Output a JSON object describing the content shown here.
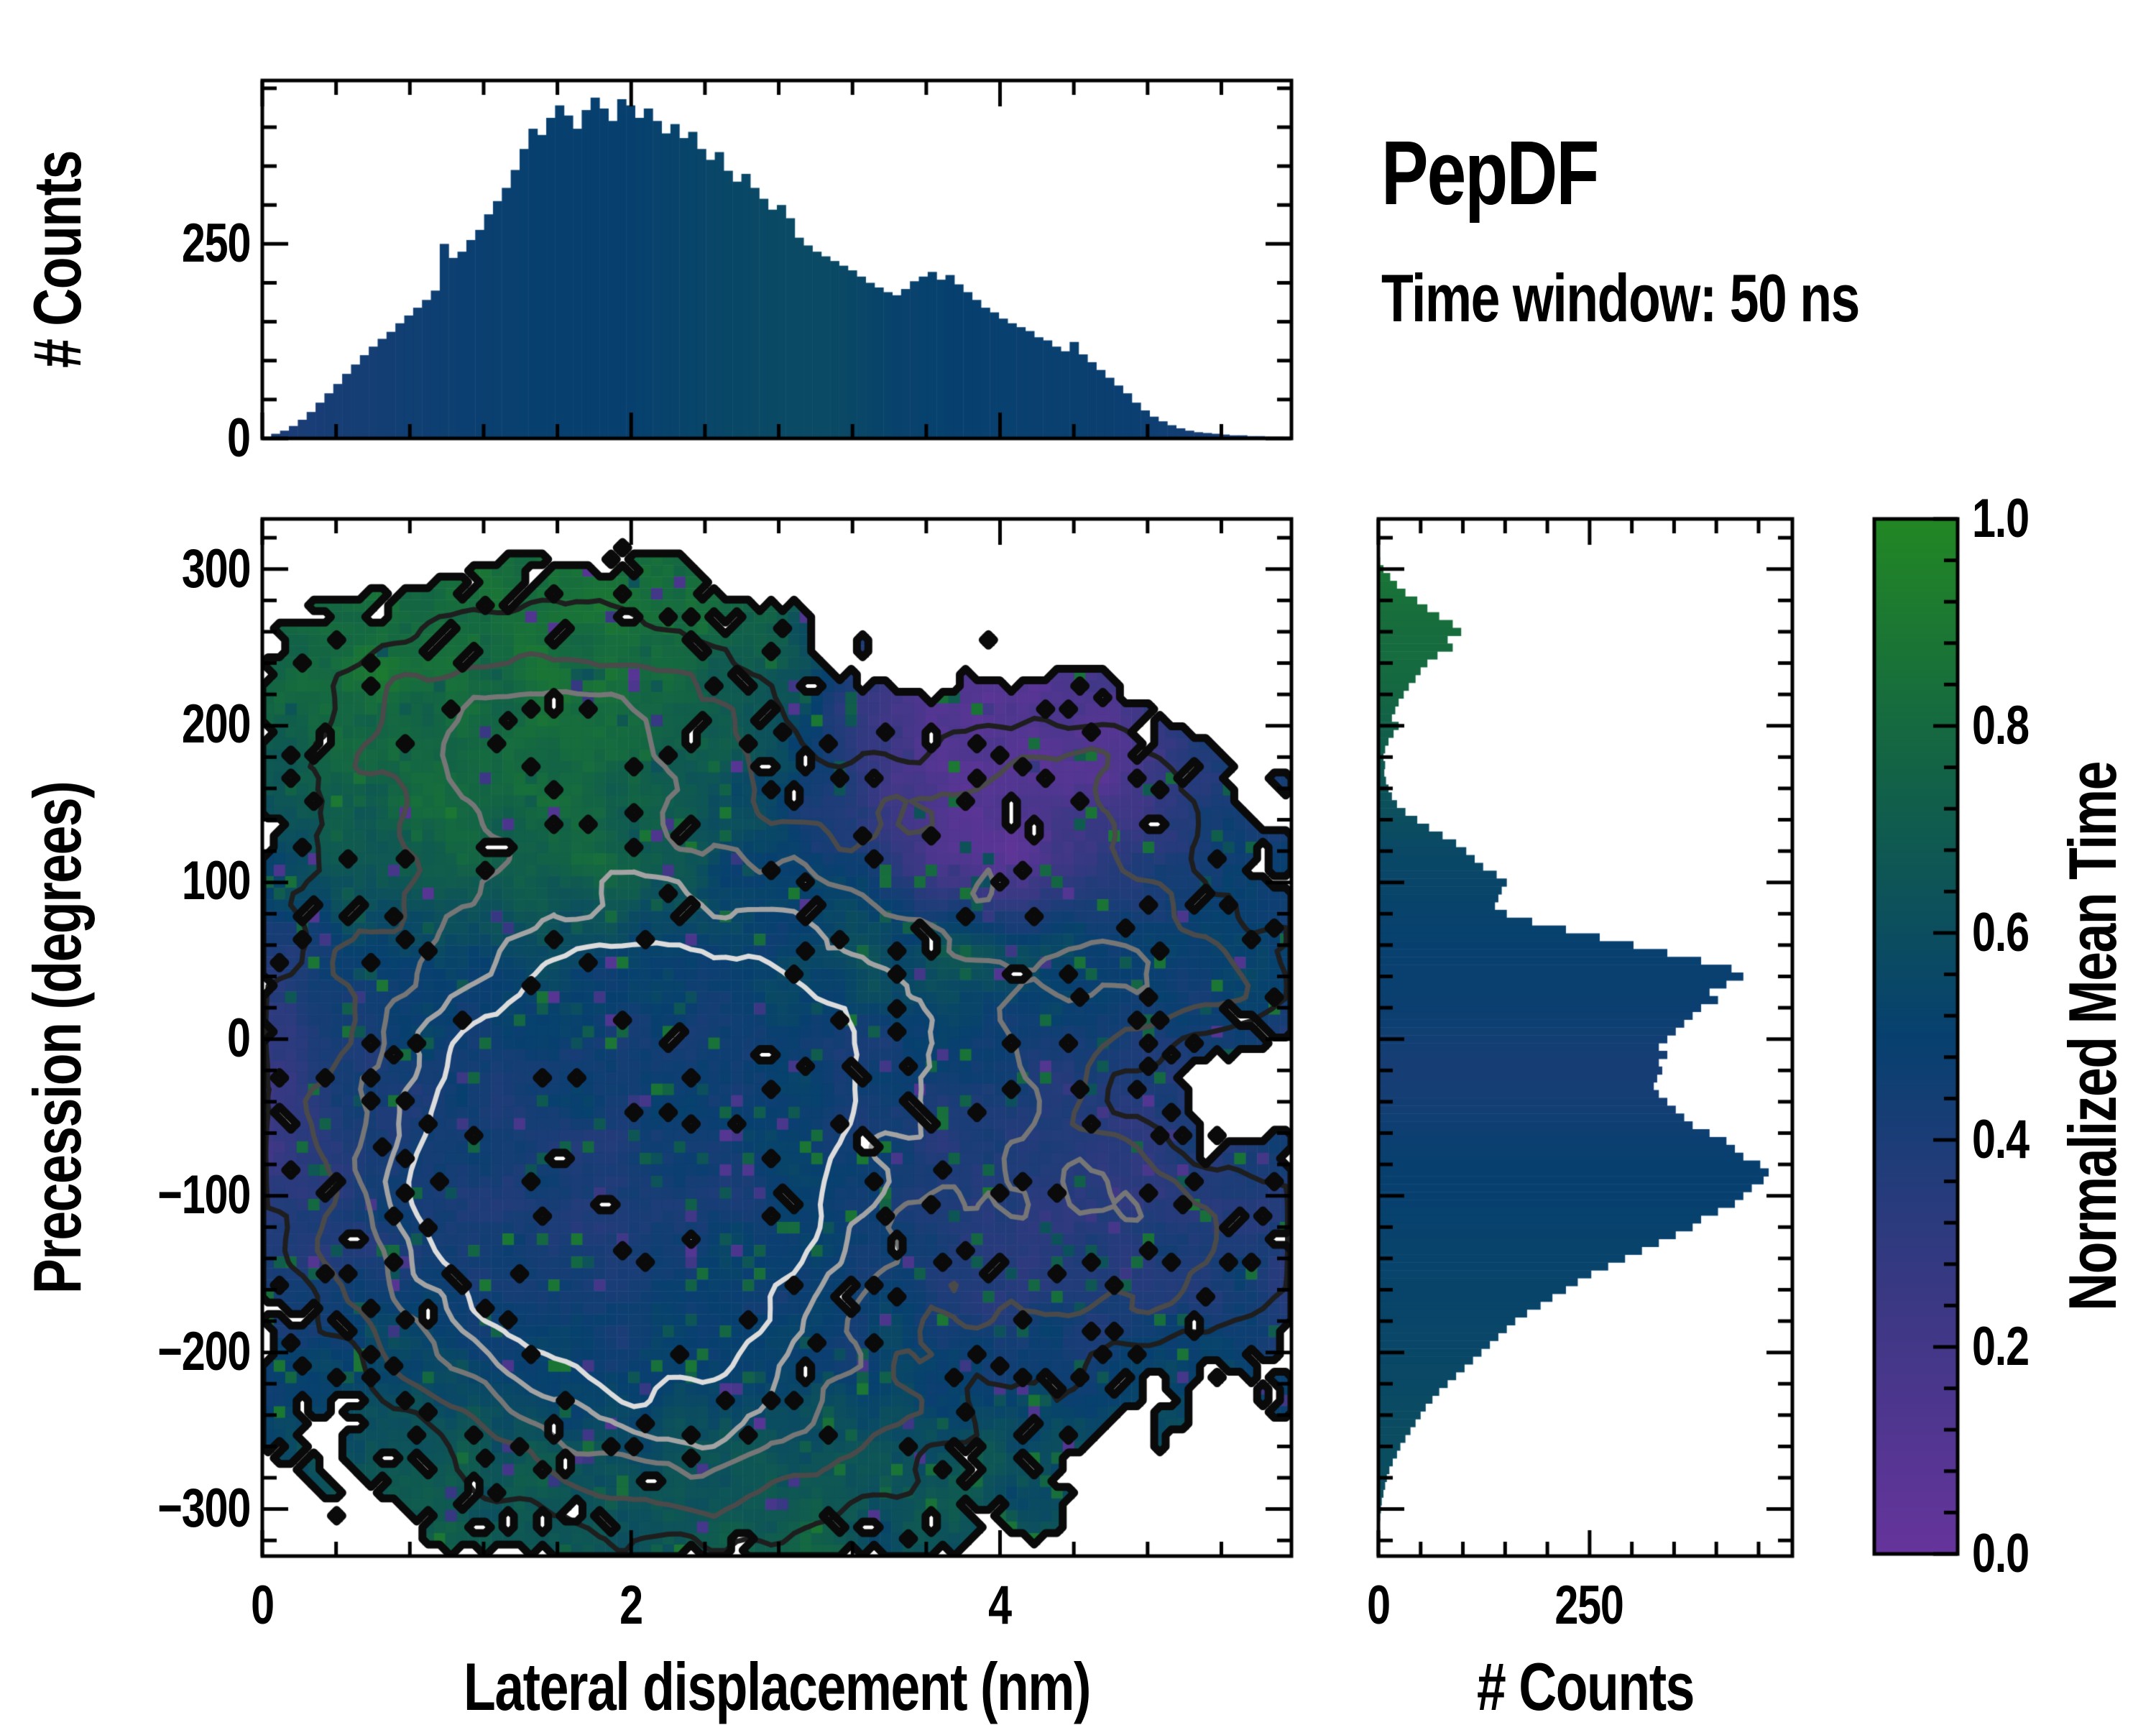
{
  "annotations": {
    "title": "PepDF",
    "subtitle": "Time window: 50 ns"
  },
  "chart_data": {
    "type": "heatmap",
    "description": "Joint distribution figure: top marginal histogram of lateral displacement, main 2D heatmap of precession vs lateral displacement colored by normalized mean time with density contours, right marginal histogram of precession, and colorbar.",
    "top_histogram": {
      "type": "bar",
      "ylabel": "# Counts",
      "ytick_labels": [
        "0",
        "250"
      ],
      "ytick_values": [
        0,
        250
      ],
      "ylim": [
        0,
        460
      ],
      "xlim": [
        0,
        5.58
      ],
      "n_bins": 116,
      "counts": [
        2,
        6,
        10,
        16,
        24,
        34,
        46,
        58,
        70,
        83,
        95,
        107,
        118,
        128,
        137,
        148,
        158,
        168,
        178,
        190,
        250,
        232,
        240,
        255,
        268,
        288,
        305,
        322,
        345,
        372,
        398,
        390,
        412,
        428,
        415,
        398,
        422,
        438,
        424,
        408,
        436,
        428,
        412,
        424,
        408,
        392,
        404,
        386,
        394,
        372,
        358,
        368,
        344,
        330,
        340,
        322,
        308,
        294,
        300,
        283,
        258,
        248,
        240,
        234,
        228,
        222,
        216,
        208,
        200,
        194,
        188,
        184,
        192,
        202,
        208,
        214,
        204,
        210,
        198,
        188,
        178,
        168,
        162,
        154,
        148,
        143,
        138,
        130,
        126,
        118,
        112,
        124,
        108,
        98,
        88,
        78,
        68,
        58,
        46,
        36,
        28,
        22,
        17,
        13,
        10,
        8,
        7,
        6,
        5,
        4,
        4,
        3,
        3,
        2,
        2,
        1
      ],
      "nmt_profile": [
        [
          0.0,
          0.55
        ],
        [
          0.1,
          0.4
        ],
        [
          0.5,
          0.43
        ],
        [
          1.0,
          0.47
        ],
        [
          1.5,
          0.5
        ],
        [
          2.0,
          0.5
        ],
        [
          2.4,
          0.54
        ],
        [
          2.8,
          0.57
        ],
        [
          3.1,
          0.57
        ],
        [
          3.4,
          0.52
        ],
        [
          3.8,
          0.5
        ],
        [
          4.2,
          0.49
        ],
        [
          4.7,
          0.48
        ],
        [
          5.0,
          0.44
        ],
        [
          5.4,
          0.41
        ],
        [
          5.58,
          0.4
        ]
      ]
    },
    "main": {
      "xlabel": "Lateral displacement (nm)",
      "ylabel": "Precession (degrees)",
      "xtick_labels": [
        "0",
        "2",
        "4"
      ],
      "xtick_values": [
        0,
        2,
        4
      ],
      "x_minor_step": 0.4,
      "ytick_labels": [
        "300",
        "200",
        "100",
        "0",
        "−100",
        "−200",
        "−300"
      ],
      "ytick_values": [
        300,
        200,
        100,
        0,
        -100,
        -200,
        -300
      ],
      "y_minor_step": 20,
      "xlim": [
        0,
        5.58
      ],
      "ylim": [
        -330,
        332
      ],
      "heatmap": {
        "nx": 90,
        "ny": 90,
        "seed": 12345,
        "density_noise_amp": 0.12,
        "nmt_noise_amp": 0.1,
        "occupancy_threshold": 0.13,
        "hole_prob": {
          "scale": 0.3,
          "falloff": 4.5,
          "base": 0.035
        },
        "gaussians": [
          {
            "x": 1.8,
            "y": -30,
            "sx": 1.15,
            "sy": 115,
            "a": 1.0
          },
          {
            "x": 1.9,
            "y": -125,
            "sx": 0.8,
            "sy": 60,
            "a": 0.8
          },
          {
            "x": 1.5,
            "y": 200,
            "sx": 0.95,
            "sy": 62,
            "a": 0.55
          },
          {
            "x": 3.4,
            "y": 20,
            "sx": 1.0,
            "sy": 80,
            "a": 0.45
          },
          {
            "x": 4.35,
            "y": 150,
            "sx": 0.55,
            "sy": 50,
            "a": 0.45
          },
          {
            "x": 2.4,
            "y": -245,
            "sx": 1.0,
            "sy": 62,
            "a": 0.55
          },
          {
            "x": 4.75,
            "y": -115,
            "sx": 0.75,
            "sy": 72,
            "a": 0.55
          },
          {
            "x": 5.05,
            "y": 30,
            "sx": 0.55,
            "sy": 42,
            "a": 0.5
          },
          {
            "x": 5.1,
            "y": -25,
            "sx": 0.5,
            "sy": 40,
            "a": -0.45
          }
        ],
        "nmt_grid_rows_top_to_bottom": [
          [
            0.78,
            0.8,
            0.82,
            0.83,
            0.82,
            0.8,
            0.76,
            0.45,
            0.32,
            0.28,
            0.33,
            0.42,
            0.46
          ],
          [
            0.76,
            0.8,
            0.83,
            0.84,
            0.83,
            0.8,
            0.74,
            0.42,
            0.25,
            0.2,
            0.3,
            0.4,
            0.46
          ],
          [
            0.72,
            0.78,
            0.82,
            0.83,
            0.82,
            0.78,
            0.62,
            0.32,
            0.12,
            0.1,
            0.18,
            0.36,
            0.46
          ],
          [
            0.66,
            0.75,
            0.8,
            0.8,
            0.78,
            0.72,
            0.56,
            0.3,
            0.1,
            0.09,
            0.14,
            0.36,
            0.46
          ],
          [
            0.56,
            0.66,
            0.72,
            0.75,
            0.72,
            0.64,
            0.52,
            0.45,
            0.15,
            0.13,
            0.35,
            0.46,
            0.5
          ],
          [
            0.46,
            0.5,
            0.52,
            0.55,
            0.52,
            0.5,
            0.5,
            0.6,
            0.64,
            0.58,
            0.48,
            0.5,
            0.52
          ],
          [
            0.3,
            0.42,
            0.46,
            0.48,
            0.46,
            0.44,
            0.46,
            0.5,
            0.48,
            0.42,
            0.46,
            0.45,
            0.46
          ],
          [
            0.26,
            0.38,
            0.42,
            0.44,
            0.42,
            0.45,
            0.48,
            0.46,
            0.4,
            0.36,
            0.34,
            0.36,
            0.38
          ],
          [
            0.32,
            0.42,
            0.45,
            0.42,
            0.4,
            0.45,
            0.5,
            0.46,
            0.38,
            0.33,
            0.34,
            0.36,
            0.38
          ],
          [
            0.4,
            0.45,
            0.48,
            0.45,
            0.42,
            0.46,
            0.5,
            0.48,
            0.42,
            0.38,
            0.38,
            0.4,
            0.4
          ],
          [
            0.5,
            0.53,
            0.55,
            0.53,
            0.5,
            0.52,
            0.55,
            0.55,
            0.52,
            0.5,
            0.5,
            0.5,
            0.5
          ],
          [
            0.6,
            0.63,
            0.66,
            0.65,
            0.63,
            0.64,
            0.66,
            0.64,
            0.62,
            0.6,
            0.6,
            0.6,
            0.6
          ],
          [
            0.64,
            0.66,
            0.68,
            0.68,
            0.66,
            0.68,
            0.68,
            0.66,
            0.64,
            0.62,
            0.62,
            0.62,
            0.62
          ]
        ],
        "contour_levels": [
          0.3,
          0.46,
          0.62,
          0.78,
          0.94
        ],
        "contour_colors": [
          "#1e1e1e",
          "#4a4a4a",
          "#767676",
          "#a3a3a3",
          "#dcdcdc"
        ],
        "outline_color": "#0a0a0a"
      }
    },
    "right_histogram": {
      "type": "bar",
      "xlabel": "# Counts",
      "xtick_labels": [
        "0",
        "250"
      ],
      "xtick_values": [
        0,
        250
      ],
      "x_minor_step": 50,
      "xlim": [
        0,
        490
      ],
      "bin_start": 310,
      "bin_step": -5,
      "counts": [
        0,
        2,
        6,
        14,
        22,
        32,
        46,
        58,
        72,
        88,
        98,
        82,
        88,
        70,
        58,
        50,
        44,
        36,
        30,
        24,
        20,
        16,
        24,
        18,
        12,
        8,
        6,
        8,
        7,
        9,
        12,
        16,
        22,
        32,
        46,
        60,
        76,
        92,
        104,
        114,
        124,
        140,
        152,
        146,
        142,
        138,
        152,
        182,
        222,
        262,
        302,
        342,
        382,
        418,
        432,
        412,
        392,
        402,
        382,
        372,
        362,
        352,
        342,
        332,
        342,
        332,
        336,
        330,
        326,
        332,
        342,
        352,
        362,
        372,
        392,
        412,
        422,
        432,
        452,
        462,
        456,
        442,
        432,
        422,
        402,
        382,
        372,
        352,
        332,
        312,
        292,
        272,
        252,
        236,
        222,
        206,
        192,
        176,
        162,
        152,
        142,
        132,
        122,
        112,
        102,
        92,
        82,
        72,
        64,
        56,
        50,
        44,
        38,
        32,
        26,
        22,
        17,
        13,
        10,
        8,
        6,
        4,
        3,
        2,
        1,
        1,
        0
      ],
      "nmt_profile": [
        [
          310,
          0.88
        ],
        [
          260,
          0.82
        ],
        [
          230,
          0.8
        ],
        [
          200,
          0.74
        ],
        [
          180,
          0.7
        ],
        [
          150,
          0.62
        ],
        [
          120,
          0.56
        ],
        [
          100,
          0.54
        ],
        [
          80,
          0.52
        ],
        [
          60,
          0.5
        ],
        [
          40,
          0.49
        ],
        [
          20,
          0.48
        ],
        [
          0,
          0.45
        ],
        [
          -20,
          0.42
        ],
        [
          -40,
          0.44
        ],
        [
          -60,
          0.47
        ],
        [
          -80,
          0.5
        ],
        [
          -100,
          0.5
        ],
        [
          -130,
          0.52
        ],
        [
          -160,
          0.53
        ],
        [
          -200,
          0.55
        ],
        [
          -240,
          0.58
        ],
        [
          -280,
          0.6
        ],
        [
          -320,
          0.62
        ]
      ]
    },
    "colorbar": {
      "label": "Normalized Mean Time",
      "tick_labels": [
        "1.0",
        "0.8",
        "0.6",
        "0.4",
        "0.2",
        "0.0"
      ],
      "tick_values": [
        1.0,
        0.8,
        0.6,
        0.4,
        0.2,
        0.0
      ],
      "minor_step": 0.04,
      "stop_positions": [
        0,
        0.25,
        0.5,
        0.75,
        1
      ],
      "stop_colors": [
        "#66349c",
        "#3a3883",
        "#07406f",
        "#126247",
        "#228724"
      ]
    }
  }
}
